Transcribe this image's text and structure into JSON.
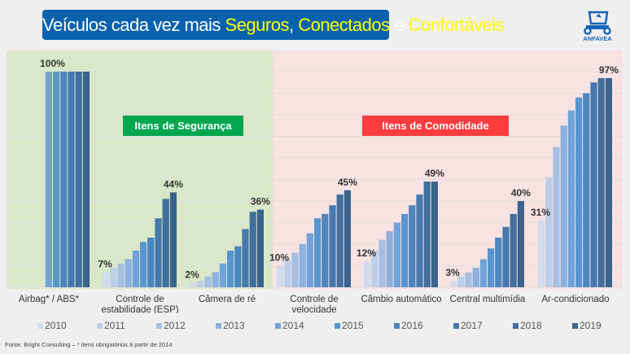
{
  "header": {
    "title_part1": "Veículos cada vez mais ",
    "title_hl1": "Seguros",
    "title_part2": ", ",
    "title_hl2": "Conectados",
    "title_part3": " e ",
    "title_hl3": "Confortáveis",
    "logo_text": "ANFAVEA"
  },
  "colors": {
    "title_bg": "#0a62ad",
    "highlight": "#ffff00",
    "safety_bg": "#d9e8c8",
    "comfort_bg": "#f8e2e2",
    "safety_tag": "#00a650",
    "comfort_tag": "#fd3c3f"
  },
  "tags": {
    "safety": "Itens de Segurança",
    "comfort": "Itens de Comodidade"
  },
  "chart_data": {
    "type": "bar",
    "ylim": [
      0,
      100
    ],
    "grid": true,
    "legend_placement": "bottom",
    "series_names": [
      "2010",
      "2011",
      "2012",
      "2013",
      "2014",
      "2015",
      "2016",
      "2017",
      "2018",
      "2019"
    ],
    "series_colors": [
      "#cfdcef",
      "#bccfe9",
      "#a5c0e3",
      "#8eb1de",
      "#70a3d9",
      "#5995ce",
      "#4d85bd",
      "#4679ad",
      "#41709e",
      "#3a638d"
    ],
    "categories": [
      {
        "label": "Airbag* / ABS*",
        "group": "safety",
        "values": [
          null,
          null,
          null,
          null,
          100,
          100,
          100,
          100,
          100,
          100
        ],
        "first_label": "",
        "last_label": "100%"
      },
      {
        "label": "Controle de estabilidade (ESP)",
        "group": "safety",
        "values": [
          7,
          9,
          11,
          13,
          17,
          21,
          23,
          32,
          41,
          44
        ],
        "first_label": "7%",
        "last_label": "44%"
      },
      {
        "label": "Câmera de ré",
        "group": "safety",
        "values": [
          2,
          3,
          5,
          7,
          11,
          17,
          19,
          27,
          35,
          36
        ],
        "first_label": "2%",
        "last_label": "36%"
      },
      {
        "label": "Controle de velocidade",
        "group": "comfort",
        "values": [
          10,
          13,
          16,
          20,
          25,
          32,
          34,
          38,
          43,
          45
        ],
        "first_label": "10%",
        "last_label": "45%"
      },
      {
        "label": "Câmbio automático",
        "group": "comfort",
        "values": [
          12,
          17,
          22,
          26,
          30,
          34,
          38,
          43,
          49,
          49
        ],
        "first_label": "12%",
        "last_label": "49%"
      },
      {
        "label": "Central multimídia",
        "group": "comfort",
        "values": [
          3,
          5,
          7,
          9,
          13,
          18,
          23,
          28,
          34,
          40
        ],
        "first_label": "3%",
        "last_label": "40%"
      },
      {
        "label": "Ar-condicionado",
        "group": "comfort",
        "values": [
          31,
          51,
          65,
          75,
          82,
          88,
          90,
          95,
          97,
          97
        ],
        "first_label": "31%",
        "last_label": "97%"
      }
    ]
  },
  "footer": {
    "source": "Fonte: Bright Consulting – * itens obrigatórios à partir de 2014"
  }
}
